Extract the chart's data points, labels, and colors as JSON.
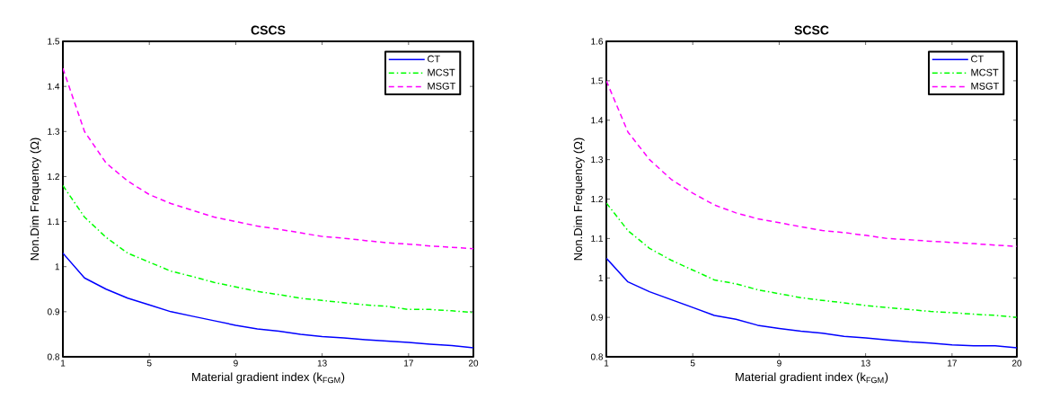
{
  "chart_data": [
    {
      "type": "line",
      "title": "CSCS",
      "xlabel": "Material gradient index (k$_{FGM}$)",
      "ylabel": "Non.Dim Frequency (Ω)",
      "x": [
        1,
        2,
        3,
        4,
        5,
        6,
        7,
        8,
        9,
        10,
        11,
        12,
        13,
        14,
        15,
        16,
        17,
        18,
        19,
        20
      ],
      "series": [
        {
          "name": "CT",
          "color": "#0000ff",
          "line_style": "solid",
          "values": [
            1.03,
            0.975,
            0.95,
            0.93,
            0.915,
            0.9,
            0.89,
            0.88,
            0.87,
            0.862,
            0.857,
            0.85,
            0.845,
            0.842,
            0.838,
            0.835,
            0.832,
            0.828,
            0.825,
            0.82
          ]
        },
        {
          "name": "MCST",
          "color": "#00ff00",
          "line_style": "dashdot",
          "values": [
            1.18,
            1.11,
            1.065,
            1.03,
            1.01,
            0.99,
            0.978,
            0.965,
            0.955,
            0.945,
            0.938,
            0.93,
            0.925,
            0.92,
            0.915,
            0.912,
            0.905,
            0.905,
            0.902,
            0.898
          ]
        },
        {
          "name": "MSGT",
          "color": "#ff00ff",
          "line_style": "dashed",
          "values": [
            1.44,
            1.3,
            1.23,
            1.19,
            1.16,
            1.14,
            1.125,
            1.11,
            1.1,
            1.09,
            1.083,
            1.075,
            1.067,
            1.063,
            1.058,
            1.053,
            1.05,
            1.046,
            1.043,
            1.04
          ]
        }
      ],
      "xlim": [
        1,
        20
      ],
      "xticks": [
        1,
        5,
        9,
        13,
        17,
        20
      ],
      "ylim": [
        0.8,
        1.5
      ],
      "yticks": [
        0.8,
        0.9,
        1,
        1.1,
        1.2,
        1.3,
        1.4,
        1.5
      ],
      "legend": "top right"
    },
    {
      "type": "line",
      "title": "SCSC",
      "xlabel": "Material gradient index (k$_{FGM}$)",
      "ylabel": "Non.Dim Frequency (Ω)",
      "x": [
        1,
        2,
        3,
        4,
        5,
        6,
        7,
        8,
        9,
        10,
        11,
        12,
        13,
        14,
        15,
        16,
        17,
        18,
        19,
        20
      ],
      "series": [
        {
          "name": "CT",
          "color": "#0000ff",
          "line_style": "solid",
          "values": [
            1.05,
            0.99,
            0.965,
            0.945,
            0.925,
            0.905,
            0.895,
            0.88,
            0.872,
            0.865,
            0.86,
            0.852,
            0.848,
            0.843,
            0.838,
            0.835,
            0.83,
            0.828,
            0.828,
            0.823
          ]
        },
        {
          "name": "MCST",
          "color": "#00ff00",
          "line_style": "dashdot",
          "values": [
            1.19,
            1.12,
            1.075,
            1.045,
            1.02,
            0.995,
            0.985,
            0.97,
            0.96,
            0.95,
            0.943,
            0.937,
            0.93,
            0.925,
            0.92,
            0.915,
            0.912,
            0.908,
            0.905,
            0.9
          ]
        },
        {
          "name": "MSGT",
          "color": "#ff00ff",
          "line_style": "dashed",
          "values": [
            1.5,
            1.37,
            1.3,
            1.25,
            1.215,
            1.185,
            1.165,
            1.15,
            1.14,
            1.13,
            1.12,
            1.115,
            1.108,
            1.1,
            1.097,
            1.093,
            1.09,
            1.087,
            1.083,
            1.08
          ]
        }
      ],
      "xlim": [
        1,
        20
      ],
      "xticks": [
        1,
        5,
        9,
        13,
        17,
        20
      ],
      "ylim": [
        0.8,
        1.6
      ],
      "yticks": [
        0.8,
        0.9,
        1,
        1.1,
        1.2,
        1.3,
        1.4,
        1.5,
        1.6
      ],
      "legend": "top right"
    }
  ]
}
